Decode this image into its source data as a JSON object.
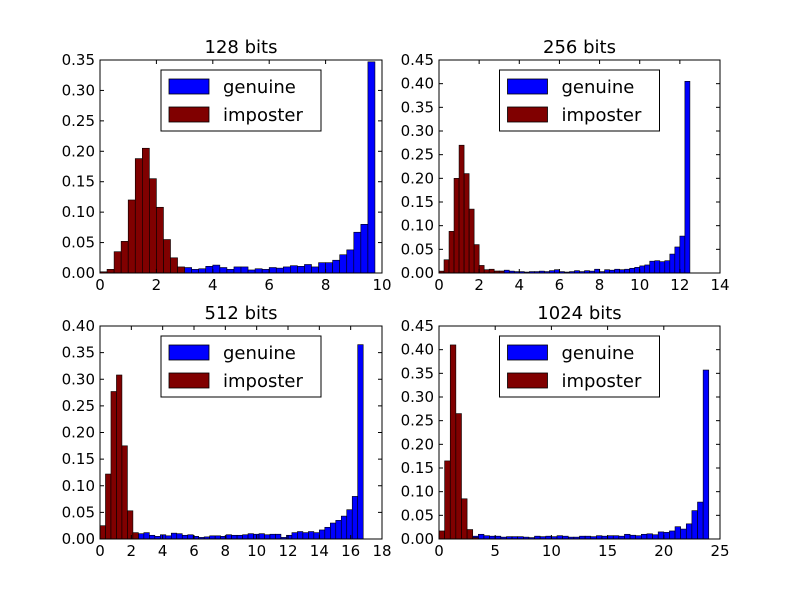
{
  "chart_data": [
    {
      "type": "bar",
      "title": "128 bits",
      "xlim": [
        0,
        10
      ],
      "ylim": [
        0,
        0.35
      ],
      "xticks": [
        "0",
        "2",
        "4",
        "6",
        "8",
        "10"
      ],
      "yticks": [
        "0.00",
        "0.05",
        "0.10",
        "0.15",
        "0.20",
        "0.25",
        "0.30",
        "0.35"
      ],
      "legend_position": "top-center",
      "legend": [
        "genuine",
        "imposter"
      ],
      "series": [
        {
          "name": "genuine",
          "color": "#0000ff",
          "bins": [
            [
              1.75,
              0.006
            ],
            [
              2.0,
              0.013
            ],
            [
              2.25,
              0.012
            ],
            [
              2.5,
              0.01
            ],
            [
              2.75,
              0.008
            ],
            [
              3.0,
              0.009
            ],
            [
              3.25,
              0.006
            ],
            [
              3.5,
              0.007
            ],
            [
              3.75,
              0.011
            ],
            [
              4.0,
              0.013
            ],
            [
              4.25,
              0.009
            ],
            [
              4.5,
              0.006
            ],
            [
              4.75,
              0.01
            ],
            [
              5.0,
              0.01
            ],
            [
              5.25,
              0.005
            ],
            [
              5.5,
              0.007
            ],
            [
              5.75,
              0.006
            ],
            [
              6.0,
              0.009
            ],
            [
              6.25,
              0.008
            ],
            [
              6.5,
              0.01
            ],
            [
              6.75,
              0.012
            ],
            [
              7.0,
              0.011
            ],
            [
              7.25,
              0.014
            ],
            [
              7.5,
              0.01
            ],
            [
              7.75,
              0.017
            ],
            [
              8.0,
              0.017
            ],
            [
              8.25,
              0.021
            ],
            [
              8.5,
              0.03
            ],
            [
              8.75,
              0.038
            ],
            [
              9.0,
              0.067
            ],
            [
              9.25,
              0.08
            ],
            [
              9.5,
              0.347
            ]
          ]
        },
        {
          "name": "imposter",
          "color": "#800000",
          "bins": [
            [
              0.0,
              0.002
            ],
            [
              0.25,
              0.006
            ],
            [
              0.5,
              0.035
            ],
            [
              0.75,
              0.052
            ],
            [
              1.0,
              0.12
            ],
            [
              1.25,
              0.188
            ],
            [
              1.5,
              0.205
            ],
            [
              1.75,
              0.155
            ],
            [
              2.0,
              0.108
            ],
            [
              2.25,
              0.055
            ],
            [
              2.5,
              0.025
            ],
            [
              2.75,
              0.01
            ]
          ]
        }
      ]
    },
    {
      "type": "bar",
      "title": "256 bits",
      "xlim": [
        0,
        14
      ],
      "ylim": [
        0,
        0.45
      ],
      "xticks": [
        "0",
        "2",
        "4",
        "6",
        "8",
        "10",
        "12",
        "14"
      ],
      "yticks": [
        "0.00",
        "0.05",
        "0.10",
        "0.15",
        "0.20",
        "0.25",
        "0.30",
        "0.35",
        "0.40",
        "0.45"
      ],
      "legend_position": "top-center",
      "legend": [
        "genuine",
        "imposter"
      ],
      "series": [
        {
          "name": "genuine",
          "color": "#0000ff",
          "bins": [
            [
              2.0,
              0.008
            ],
            [
              2.25,
              0.006
            ],
            [
              2.5,
              0.005
            ],
            [
              2.75,
              0.004
            ],
            [
              3.0,
              0.004
            ],
            [
              3.25,
              0.006
            ],
            [
              3.5,
              0.004
            ],
            [
              3.75,
              0.003
            ],
            [
              4.0,
              0.003
            ],
            [
              4.25,
              0.002
            ],
            [
              4.5,
              0.003
            ],
            [
              4.75,
              0.003
            ],
            [
              5.0,
              0.004
            ],
            [
              5.25,
              0.003
            ],
            [
              5.5,
              0.005
            ],
            [
              5.75,
              0.007
            ],
            [
              6.0,
              0.003
            ],
            [
              6.25,
              0.002
            ],
            [
              6.5,
              0.003
            ],
            [
              6.75,
              0.005
            ],
            [
              7.0,
              0.003
            ],
            [
              7.25,
              0.005
            ],
            [
              7.5,
              0.004
            ],
            [
              7.75,
              0.008
            ],
            [
              8.0,
              0.003
            ],
            [
              8.25,
              0.007
            ],
            [
              8.5,
              0.006
            ],
            [
              8.75,
              0.008
            ],
            [
              9.0,
              0.007
            ],
            [
              9.25,
              0.008
            ],
            [
              9.5,
              0.01
            ],
            [
              9.75,
              0.012
            ],
            [
              10.0,
              0.015
            ],
            [
              10.25,
              0.017
            ],
            [
              10.5,
              0.025
            ],
            [
              10.75,
              0.026
            ],
            [
              11.0,
              0.024
            ],
            [
              11.25,
              0.026
            ],
            [
              11.5,
              0.04
            ],
            [
              11.75,
              0.055
            ],
            [
              12.0,
              0.078
            ],
            [
              12.25,
              0.405
            ]
          ]
        },
        {
          "name": "imposter",
          "color": "#800000",
          "bins": [
            [
              0.0,
              0.004
            ],
            [
              0.25,
              0.028
            ],
            [
              0.5,
              0.088
            ],
            [
              0.75,
              0.2
            ],
            [
              1.0,
              0.27
            ],
            [
              1.25,
              0.21
            ],
            [
              1.5,
              0.135
            ],
            [
              1.75,
              0.06
            ],
            [
              2.0,
              0.016
            ],
            [
              2.25,
              0.007
            ],
            [
              2.5,
              0.008
            ],
            [
              2.75,
              0.004
            ],
            [
              3.0,
              0.004
            ]
          ]
        }
      ]
    },
    {
      "type": "bar",
      "title": "512 bits",
      "xlim": [
        0,
        18
      ],
      "ylim": [
        0,
        0.4
      ],
      "xticks": [
        "0",
        "2",
        "4",
        "6",
        "8",
        "10",
        "12",
        "14",
        "16",
        "18"
      ],
      "yticks": [
        "0.00",
        "0.05",
        "0.10",
        "0.15",
        "0.20",
        "0.25",
        "0.30",
        "0.35",
        "0.40"
      ],
      "legend_position": "top-center",
      "legend": [
        "genuine",
        "imposter"
      ],
      "series": [
        {
          "name": "genuine",
          "color": "#0000ff",
          "bins": [
            [
              2.1,
              0.01
            ],
            [
              2.45,
              0.01
            ],
            [
              2.8,
              0.012
            ],
            [
              3.15,
              0.007
            ],
            [
              3.5,
              0.005
            ],
            [
              3.85,
              0.008
            ],
            [
              4.2,
              0.006
            ],
            [
              4.55,
              0.011
            ],
            [
              4.9,
              0.01
            ],
            [
              5.25,
              0.007
            ],
            [
              5.6,
              0.008
            ],
            [
              5.95,
              0.005
            ],
            [
              6.3,
              0.003
            ],
            [
              6.65,
              0.004
            ],
            [
              7.0,
              0.006
            ],
            [
              7.35,
              0.006
            ],
            [
              7.7,
              0.005
            ],
            [
              8.05,
              0.008
            ],
            [
              8.4,
              0.007
            ],
            [
              8.75,
              0.007
            ],
            [
              9.1,
              0.008
            ],
            [
              9.45,
              0.01
            ],
            [
              9.8,
              0.009
            ],
            [
              10.15,
              0.01
            ],
            [
              10.5,
              0.008
            ],
            [
              10.85,
              0.009
            ],
            [
              11.2,
              0.009
            ],
            [
              11.55,
              0.003
            ],
            [
              11.9,
              0.007
            ],
            [
              12.25,
              0.012
            ],
            [
              12.6,
              0.014
            ],
            [
              12.95,
              0.012
            ],
            [
              13.3,
              0.014
            ],
            [
              13.65,
              0.012
            ],
            [
              14.0,
              0.017
            ],
            [
              14.35,
              0.022
            ],
            [
              14.7,
              0.03
            ],
            [
              15.05,
              0.035
            ],
            [
              15.4,
              0.043
            ],
            [
              15.75,
              0.055
            ],
            [
              16.1,
              0.08
            ],
            [
              16.45,
              0.365
            ]
          ]
        },
        {
          "name": "imposter",
          "color": "#800000",
          "bins": [
            [
              0.0,
              0.025
            ],
            [
              0.35,
              0.122
            ],
            [
              0.7,
              0.277
            ],
            [
              1.05,
              0.308
            ],
            [
              1.4,
              0.175
            ],
            [
              1.75,
              0.053
            ],
            [
              2.1,
              0.012
            ]
          ]
        }
      ]
    },
    {
      "type": "bar",
      "title": "1024 bits",
      "xlim": [
        0,
        25
      ],
      "ylim": [
        0,
        0.45
      ],
      "xticks": [
        "0",
        "5",
        "10",
        "15",
        "20",
        "25"
      ],
      "yticks": [
        "0.00",
        "0.05",
        "0.10",
        "0.15",
        "0.20",
        "0.25",
        "0.30",
        "0.35",
        "0.40",
        "0.45"
      ],
      "legend_position": "top-center",
      "legend": [
        "genuine",
        "imposter"
      ],
      "series": [
        {
          "name": "genuine",
          "color": "#0000ff",
          "bins": [
            [
              3.0,
              0.006
            ],
            [
              3.5,
              0.01
            ],
            [
              4.0,
              0.007
            ],
            [
              4.5,
              0.006
            ],
            [
              5.0,
              0.006
            ],
            [
              5.5,
              0.004
            ],
            [
              6.0,
              0.005
            ],
            [
              6.5,
              0.005
            ],
            [
              7.0,
              0.005
            ],
            [
              7.5,
              0.004
            ],
            [
              8.0,
              0.003
            ],
            [
              8.5,
              0.006
            ],
            [
              9.0,
              0.005
            ],
            [
              9.5,
              0.006
            ],
            [
              10.0,
              0.005
            ],
            [
              10.5,
              0.007
            ],
            [
              11.0,
              0.006
            ],
            [
              11.5,
              0.004
            ],
            [
              12.0,
              0.004
            ],
            [
              12.5,
              0.006
            ],
            [
              13.0,
              0.006
            ],
            [
              13.5,
              0.005
            ],
            [
              14.0,
              0.007
            ],
            [
              14.5,
              0.006
            ],
            [
              15.0,
              0.007
            ],
            [
              15.5,
              0.007
            ],
            [
              16.0,
              0.006
            ],
            [
              16.5,
              0.01
            ],
            [
              17.0,
              0.008
            ],
            [
              17.5,
              0.007
            ],
            [
              18.0,
              0.01
            ],
            [
              18.5,
              0.011
            ],
            [
              19.0,
              0.009
            ],
            [
              19.5,
              0.015
            ],
            [
              20.0,
              0.014
            ],
            [
              20.5,
              0.017
            ],
            [
              21.0,
              0.026
            ],
            [
              21.5,
              0.021
            ],
            [
              22.0,
              0.032
            ],
            [
              22.5,
              0.06
            ],
            [
              23.0,
              0.078
            ],
            [
              23.5,
              0.357
            ]
          ]
        },
        {
          "name": "imposter",
          "color": "#800000",
          "bins": [
            [
              0.0,
              0.017
            ],
            [
              0.5,
              0.165
            ],
            [
              1.0,
              0.41
            ],
            [
              1.5,
              0.265
            ],
            [
              2.0,
              0.085
            ],
            [
              2.5,
              0.02
            ],
            [
              3.0,
              0.003
            ]
          ]
        }
      ]
    }
  ]
}
